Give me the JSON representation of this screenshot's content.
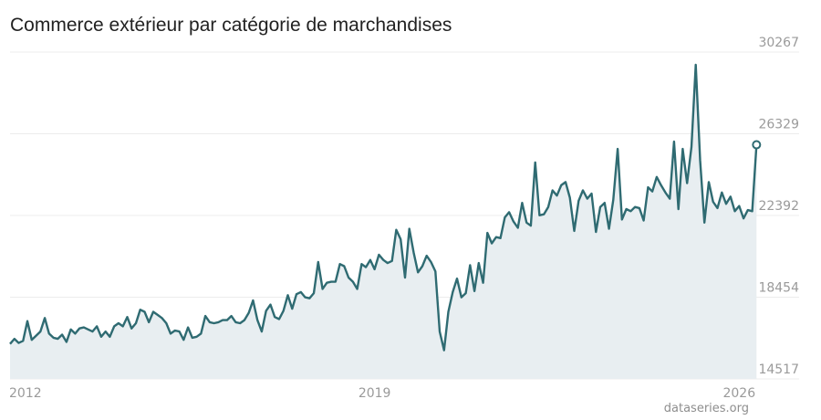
{
  "title": "Commerce extérieur par catégorie de marchandises",
  "credit": "dataseries.org",
  "colors": {
    "line": "#2f6b72",
    "fill": "#e8eef1",
    "grid": "#ececec",
    "tick": "#9a9a9a"
  },
  "chart_data": {
    "type": "area",
    "title": "Commerce extérieur par catégorie de marchandises",
    "xlabel": "",
    "ylabel": "",
    "x_ticks": [
      2012,
      2019,
      2026
    ],
    "y_ticks": [
      30267,
      26329,
      22392,
      18454,
      14517
    ],
    "ylim": [
      14517,
      30267
    ],
    "x_range": [
      2012.0,
      2026.17
    ],
    "grid": true,
    "y_axis_side": "right",
    "series": [
      {
        "x_start": 2012.0,
        "x_step_months": 1,
        "values": [
          16200,
          16450,
          16250,
          16350,
          17300,
          16400,
          16600,
          16800,
          17450,
          16700,
          16500,
          16450,
          16650,
          16300,
          16900,
          16700,
          16950,
          17000,
          16900,
          16800,
          17050,
          16550,
          16800,
          16550,
          17050,
          17200,
          17050,
          17500,
          16950,
          17200,
          17850,
          17750,
          17250,
          17750,
          17600,
          17450,
          17200,
          16700,
          16850,
          16800,
          16400,
          17000,
          16500,
          16550,
          16700,
          17550,
          17250,
          17200,
          17250,
          17350,
          17350,
          17550,
          17250,
          17200,
          17350,
          17700,
          18300,
          17350,
          16800,
          17800,
          18100,
          17500,
          17400,
          17800,
          18550,
          17900,
          18600,
          18700,
          18450,
          18400,
          18650,
          20150,
          18850,
          19150,
          19200,
          19200,
          20050,
          19950,
          19400,
          19200,
          18850,
          20050,
          19900,
          20250,
          19800,
          20500,
          20250,
          20100,
          20200,
          21700,
          21250,
          19400,
          21750,
          20600,
          19650,
          19950,
          20450,
          20150,
          19700,
          16800,
          15900,
          17750,
          18700,
          19350,
          18450,
          18650,
          20000,
          18750,
          20100,
          19150,
          21550,
          21050,
          21350,
          21300,
          22300,
          22550,
          22100,
          21800,
          23000,
          22050,
          21900,
          24950,
          22400,
          22450,
          22800,
          23600,
          23350,
          23850,
          24000,
          23250,
          21650,
          23100,
          23600,
          23200,
          23450,
          21600,
          22800,
          23000,
          21750,
          23150,
          25600,
          22200,
          22700,
          22600,
          22800,
          22750,
          22150,
          23750,
          23550,
          24250,
          23850,
          23500,
          23200,
          25950,
          22700,
          25600,
          23950,
          25700,
          29650,
          25050,
          22050,
          24000,
          23050,
          22750,
          23500,
          22950,
          23300,
          22600,
          22850,
          22250,
          22650,
          22600,
          25800
        ],
        "last_point": 25800
      }
    ]
  }
}
